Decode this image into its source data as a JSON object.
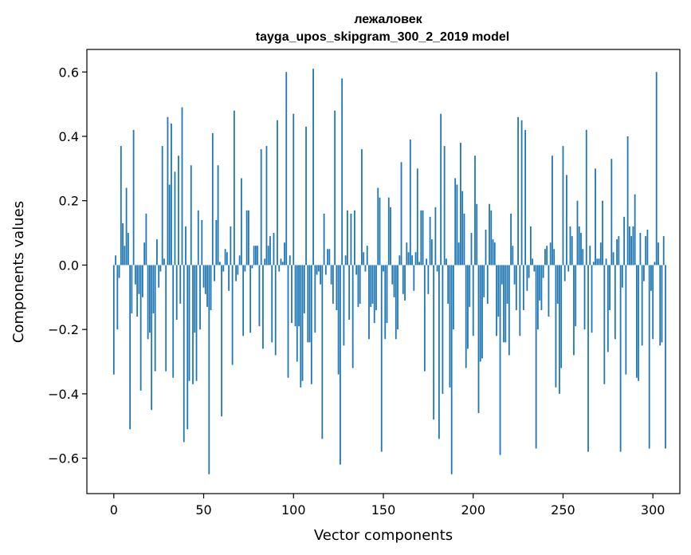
{
  "chart_data": {
    "type": "bar",
    "title_line1": "лежаловек",
    "title_line2": "tayga_upos_skipgram_300_2_2019 model",
    "xlabel": "Vector components",
    "ylabel": "Components values",
    "xlim": [
      -15,
      315
    ],
    "ylim": [
      -0.71,
      0.67
    ],
    "x_ticks": [
      0,
      50,
      100,
      150,
      200,
      250,
      300
    ],
    "x_tick_labels": [
      "0",
      "50",
      "100",
      "150",
      "200",
      "250",
      "300"
    ],
    "y_ticks": [
      -0.6,
      -0.4,
      -0.2,
      0.0,
      0.2,
      0.4,
      0.6
    ],
    "y_tick_labels": [
      "−0.6",
      "−0.4",
      "−0.2",
      "0.0",
      "0.2",
      "0.4",
      "0.6"
    ],
    "grid": false,
    "bar_color": "#1f77b4",
    "values": [
      -0.34,
      0.03,
      -0.2,
      -0.04,
      0.37,
      0.13,
      0.06,
      0.24,
      0.1,
      -0.51,
      -0.15,
      0.42,
      -0.06,
      -0.16,
      -0.09,
      -0.39,
      -0.1,
      0.07,
      0.16,
      -0.23,
      -0.21,
      -0.45,
      -0.15,
      -0.33,
      0.08,
      -0.07,
      -0.02,
      0.37,
      0.02,
      -0.33,
      0.46,
      0.25,
      0.44,
      -0.35,
      0.29,
      -0.17,
      0.34,
      -0.12,
      0.49,
      -0.55,
      0.12,
      -0.51,
      -0.36,
      0.31,
      -0.37,
      -0.21,
      -0.36,
      0.17,
      -0.2,
      0.14,
      -0.07,
      -0.09,
      -0.13,
      -0.65,
      -0.14,
      0.41,
      -0.05,
      0.14,
      0.31,
      0.01,
      -0.47,
      -0.02,
      0.05,
      0.04,
      -0.08,
      0.12,
      -0.31,
      0.48,
      -0.05,
      -0.03,
      0.03,
      0.27,
      -0.22,
      -0.02,
      0.17,
      0.17,
      -0.21,
      -0.01,
      0.06,
      0.06,
      0.06,
      -0.19,
      0.36,
      -0.26,
      0.02,
      0.37,
      0.06,
      0.09,
      -0.24,
      0.1,
      -0.28,
      0.45,
      -0.02,
      0.02,
      0.01,
      0.07,
      0.6,
      -0.35,
      0.03,
      -0.18,
      0.47,
      -0.19,
      -0.3,
      -0.19,
      -0.38,
      -0.36,
      -0.15,
      0.43,
      -0.24,
      -0.24,
      -0.37,
      0.61,
      -0.21,
      -0.03,
      -0.02,
      -0.06,
      -0.54,
      0.16,
      -0.03,
      0.05,
      0.05,
      -0.06,
      -0.12,
      0.48,
      -0.14,
      -0.34,
      -0.62,
      0.58,
      -0.25,
      0.03,
      0.17,
      -0.17,
      0.16,
      -0.32,
      0.17,
      -0.03,
      -0.13,
      -0.12,
      0.36,
      0.04,
      -0.02,
      0.06,
      -0.23,
      -0.13,
      -0.12,
      -0.18,
      -0.14,
      0.24,
      0.21,
      -0.58,
      -0.02,
      -0.23,
      -0.18,
      0.21,
      0.18,
      -0.06,
      -0.1,
      -0.23,
      -0.2,
      0.03,
      0.32,
      -0.09,
      -0.11,
      0.07,
      0.04,
      0.39,
      0.03,
      -0.08,
      0.04,
      0.3,
      0.01,
      0.17,
      0.17,
      -0.33,
      0.02,
      -0.09,
      0.15,
      0.08,
      -0.48,
      0.18,
      -0.02,
      -0.54,
      0.47,
      -0.4,
      0.37,
      0.02,
      -0.12,
      -0.38,
      -0.65,
      -0.2,
      0.27,
      0.25,
      0.07,
      0.38,
      0.23,
      0.16,
      -0.32,
      -0.26,
      -0.13,
      0.1,
      -0.22,
      0.34,
      0.19,
      -0.46,
      -0.3,
      -0.29,
      -0.1,
      0.11,
      -0.12,
      0.19,
      0.17,
      0.08,
      0.07,
      -0.22,
      -0.16,
      -0.59,
      -0.06,
      -0.24,
      -0.24,
      -0.12,
      -0.28,
      0.16,
      0.06,
      -0.06,
      -0.14,
      0.46,
      -0.22,
      0.45,
      -0.14,
      0.42,
      -0.08,
      -0.04,
      0.12,
      0.02,
      -0.02,
      -0.57,
      -0.2,
      -0.11,
      -0.14,
      -0.04,
      0.05,
      0.06,
      -0.16,
      0.07,
      0.34,
      0.05,
      -0.38,
      -0.12,
      -0.4,
      -0.32,
      0.37,
      -0.05,
      0.28,
      -0.02,
      0.12,
      0.09,
      -0.28,
      -0.19,
      0.2,
      0.12,
      0.1,
      0.05,
      -0.2,
      0.42,
      -0.58,
      0.06,
      -0.21,
      0.01,
      0.3,
      0.02,
      0.02,
      0.07,
      0.2,
      -0.37,
      0.02,
      -0.27,
      -0.14,
      0.33,
      0.04,
      -0.23,
      0.08,
      0.09,
      -0.58,
      -0.07,
      0.15,
      -0.34,
      0.4,
      0.12,
      0.09,
      0.12,
      0.22,
      -0.35,
      -0.36,
      0.1,
      -0.25,
      -0.05,
      0.09,
      0.11,
      -0.57,
      -0.08,
      -0.23,
      0.01,
      0.6,
      0.07,
      -0.25,
      -0.24,
      0.09,
      -0.57
    ]
  }
}
